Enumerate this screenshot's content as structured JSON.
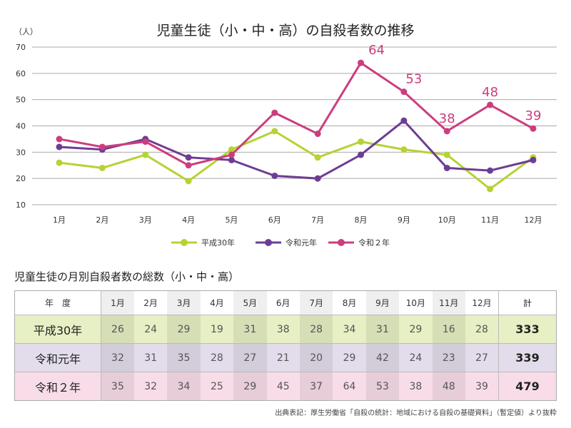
{
  "chart_data": {
    "type": "line",
    "title": "児童生徒（小・中・高）の自殺者数の推移",
    "ylabel": "（人）",
    "ylim": [
      10,
      70
    ],
    "yticks": [
      10,
      20,
      30,
      40,
      50,
      60,
      70
    ],
    "grid": true,
    "legend_placement": "bottom",
    "categories": [
      "1月",
      "2月",
      "3月",
      "4月",
      "5月",
      "6月",
      "7月",
      "8月",
      "9月",
      "10月",
      "11月",
      "12月"
    ],
    "series": [
      {
        "name": "平成30年",
        "color": "#b5d334",
        "values": [
          26,
          24,
          29,
          19,
          31,
          38,
          28,
          34,
          31,
          29,
          16,
          28
        ]
      },
      {
        "name": "令和元年",
        "color": "#6e3d93",
        "values": [
          32,
          31,
          35,
          28,
          27,
          21,
          20,
          29,
          42,
          24,
          23,
          27
        ]
      },
      {
        "name": "令和２年",
        "color": "#cc3d7e",
        "values": [
          35,
          32,
          34,
          25,
          29,
          45,
          37,
          64,
          53,
          38,
          48,
          39
        ],
        "labeled_from_index": 7
      }
    ]
  },
  "table": {
    "title": "児童生徒の月別自殺者数の総数（小・中・高）",
    "header_first": "年　度",
    "header_total": "計",
    "rows": [
      {
        "label": "平成30年",
        "values": [
          26,
          24,
          29,
          19,
          31,
          38,
          28,
          34,
          31,
          29,
          16,
          28
        ],
        "total": 333
      },
      {
        "label": "令和元年",
        "values": [
          32,
          31,
          35,
          28,
          27,
          21,
          20,
          29,
          42,
          24,
          23,
          27
        ],
        "total": 339
      },
      {
        "label": "令和２年",
        "values": [
          35,
          32,
          34,
          25,
          29,
          45,
          37,
          64,
          53,
          38,
          48,
          39
        ],
        "total": 479
      }
    ]
  },
  "source": "出典表記：厚生労働省「自殺の統計：地域における自殺の基礎資料」（暫定値）より抜粋"
}
